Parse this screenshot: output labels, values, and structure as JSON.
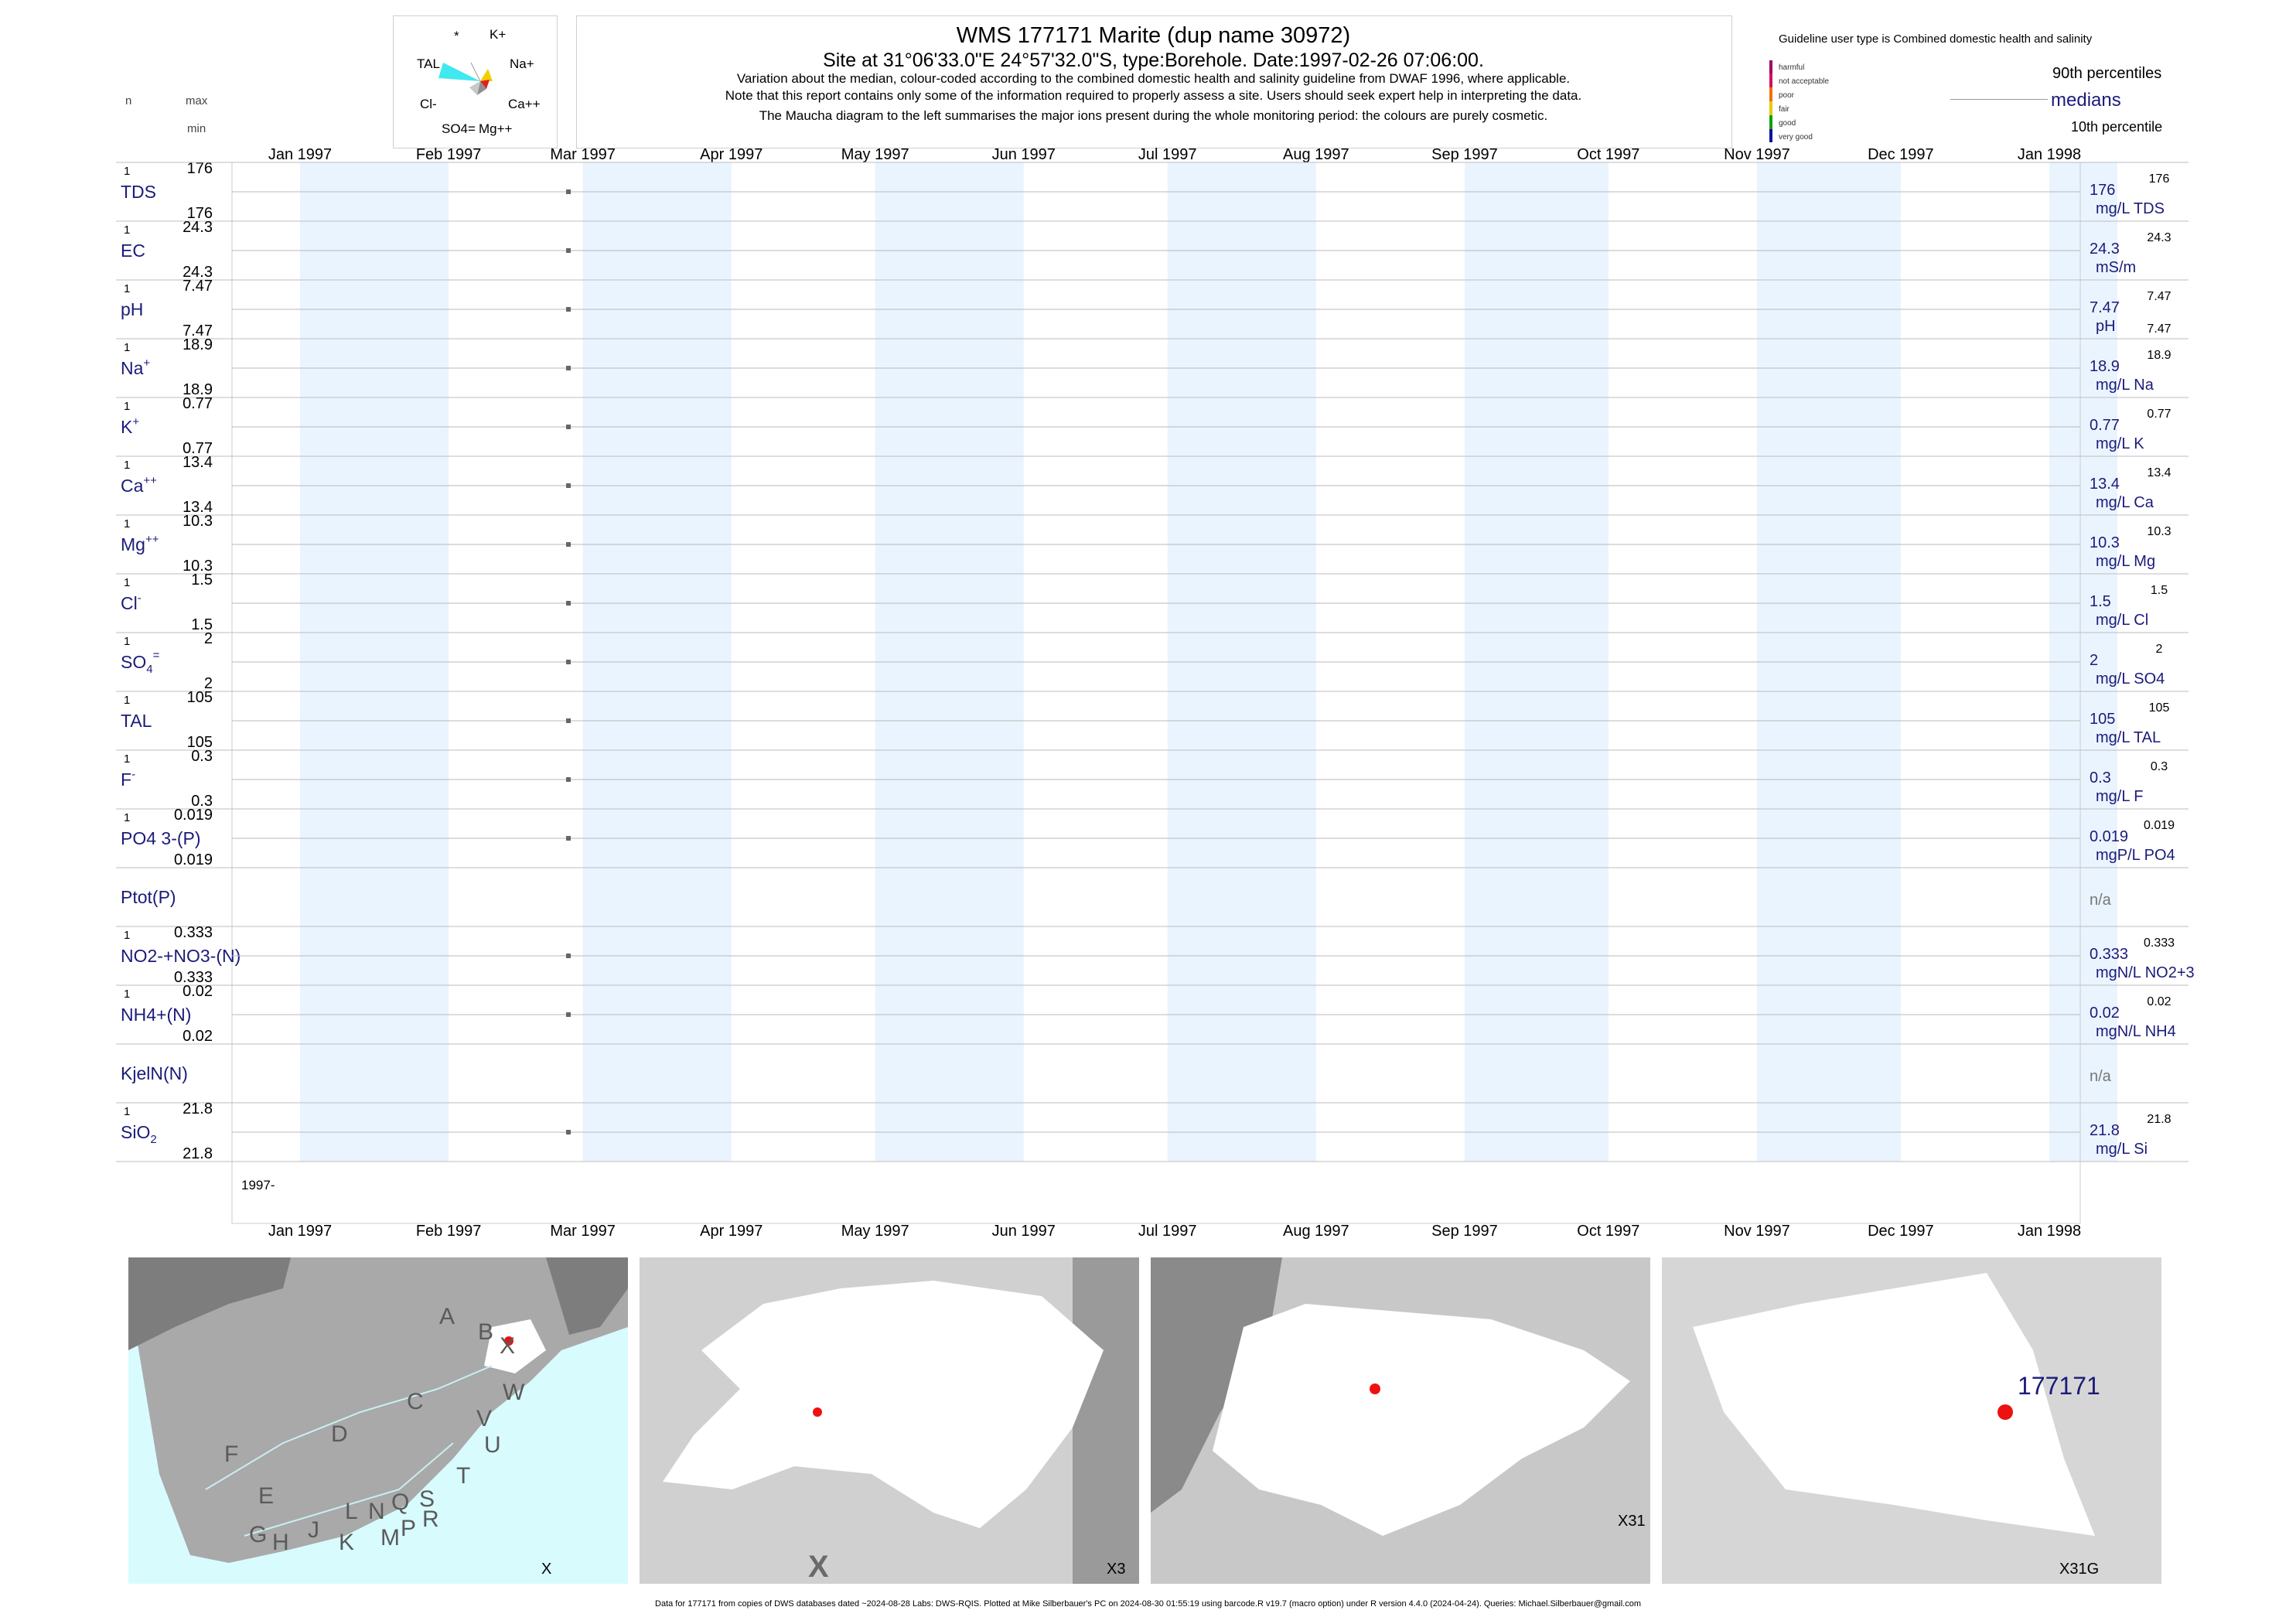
{
  "header": {
    "title": "WMS 177171  Marite (dup name 30972)",
    "subtitle": "Site at 31°06'33.0\"E 24°57'32.0\"S, type:Borehole. Date:1997-02-26 07:06:00.",
    "note1": "Variation about the median,  colour-coded according to the combined domestic health and salinity guideline from DWAF 1996, where applicable.",
    "note2": "Note that this report contains only some of the information required to properly assess a site. Users should seek expert help in interpreting the data.",
    "note3": "The Maucha diagram to the left summarises the major ions present during the whole monitoring period: the colours are purely cosmetic.",
    "n_label": "n",
    "max_label": "max",
    "min_label": "min"
  },
  "maucha": {
    "labels": [
      "*",
      "K+",
      "TAL",
      "Na+",
      "Cl-",
      "Ca++",
      "SO4=",
      "Mg++"
    ],
    "colors": [
      "#40e8f0",
      "#f0d000",
      "#e02020",
      "#909090",
      "#c8c8c8"
    ]
  },
  "legend": {
    "guideline": "Guideline user type is Combined domestic health and salinity",
    "classes": [
      "harmful",
      "not acceptable",
      "poor",
      "fair",
      "good",
      "very good"
    ],
    "class_colors": [
      "#a0006a",
      "#d01060",
      "#f07000",
      "#e8c800",
      "#10a010",
      "#1010a0"
    ],
    "p90": "90th percentiles",
    "medians": "medians",
    "p10": "10th percentile"
  },
  "chart_data": {
    "type": "scatter",
    "x_axis_months": [
      "Jan 1997",
      "Feb 1997",
      "Mar 1997",
      "Apr 1997",
      "May 1997",
      "Jun 1997",
      "Jul 1997",
      "Aug 1997",
      "Sep 1997",
      "Oct 1997",
      "Nov 1997",
      "Dec 1997",
      "Jan 1998"
    ],
    "x_range": [
      "1997-01-01",
      "1998-01-01"
    ],
    "sample_date": "1997-02-26",
    "year_label": "1997-",
    "series": [
      {
        "name": "TDS",
        "n": "1",
        "max": "176",
        "min": "176",
        "value": 176,
        "median": "176",
        "unit": "mg/L TDS",
        "right_top": "176",
        "right_bottom": ""
      },
      {
        "name": "EC",
        "n": "1",
        "max": "24.3",
        "min": "24.3",
        "value": 24.3,
        "median": "24.3",
        "unit": "mS/m",
        "right_top": "24.3",
        "right_bottom": ""
      },
      {
        "name": "pH",
        "n": "1",
        "max": "7.47",
        "min": "7.47",
        "value": 7.47,
        "median": "7.47",
        "unit": "pH",
        "right_top": "7.47",
        "right_bottom": "7.47"
      },
      {
        "name": "Na+",
        "n": "1",
        "max": "18.9",
        "min": "18.9",
        "value": 18.9,
        "median": "18.9",
        "unit": "mg/L Na",
        "right_top": "18.9",
        "right_bottom": ""
      },
      {
        "name": "K+",
        "n": "1",
        "max": "0.77",
        "min": "0.77",
        "value": 0.77,
        "median": "0.77",
        "unit": "mg/L K",
        "right_top": "0.77",
        "right_bottom": ""
      },
      {
        "name": "Ca++",
        "n": "1",
        "max": "13.4",
        "min": "13.4",
        "value": 13.4,
        "median": "13.4",
        "unit": "mg/L Ca",
        "right_top": "13.4",
        "right_bottom": ""
      },
      {
        "name": "Mg++",
        "n": "1",
        "max": "10.3",
        "min": "10.3",
        "value": 10.3,
        "median": "10.3",
        "unit": "mg/L Mg",
        "right_top": "10.3",
        "right_bottom": ""
      },
      {
        "name": "Cl-",
        "n": "1",
        "max": "1.5",
        "min": "1.5",
        "value": 1.5,
        "median": "1.5",
        "unit": "mg/L Cl",
        "right_top": "1.5",
        "right_bottom": ""
      },
      {
        "name": "SO4=",
        "n": "1",
        "max": "2",
        "min": "2",
        "value": 2,
        "median": "2",
        "unit": "mg/L SO4",
        "right_top": "2",
        "right_bottom": ""
      },
      {
        "name": "TAL",
        "n": "1",
        "max": "105",
        "min": "105",
        "value": 105,
        "median": "105",
        "unit": "mg/L TAL",
        "right_top": "105",
        "right_bottom": ""
      },
      {
        "name": "F-",
        "n": "1",
        "max": "0.3",
        "min": "0.3",
        "value": 0.3,
        "median": "0.3",
        "unit": "mg/L F",
        "right_top": "0.3",
        "right_bottom": ""
      },
      {
        "name": "PO4 3-(P)",
        "n": "1",
        "max": "0.019",
        "min": "0.019",
        "value": 0.019,
        "median": "0.019",
        "unit": "mgP/L PO4",
        "right_top": "0.019",
        "right_bottom": ""
      },
      {
        "name": "Ptot(P)",
        "n": "",
        "max": "",
        "min": "",
        "value": null,
        "median": "n/a",
        "unit": "",
        "right_top": "",
        "right_bottom": ""
      },
      {
        "name": "NO2-+NO3-(N)",
        "n": "1",
        "max": "0.333",
        "min": "0.333",
        "value": 0.333,
        "median": "0.333",
        "unit": "mgN/L NO2+3",
        "right_top": "0.333",
        "right_bottom": ""
      },
      {
        "name": "NH4+(N)",
        "n": "1",
        "max": "0.02",
        "min": "0.02",
        "value": 0.02,
        "median": "0.02",
        "unit": "mgN/L NH4",
        "right_top": "0.02",
        "right_bottom": ""
      },
      {
        "name": "KjelN(N)",
        "n": "",
        "max": "",
        "min": "",
        "value": null,
        "median": "n/a",
        "unit": "",
        "right_top": "",
        "right_bottom": ""
      },
      {
        "name": "SiO2",
        "n": "1",
        "max": "21.8",
        "min": "21.8",
        "value": 21.8,
        "median": "21.8",
        "unit": "mg/L Si",
        "right_top": "21.8",
        "right_bottom": ""
      }
    ]
  },
  "maps": {
    "map1": {
      "corner": "X",
      "regions": [
        "A",
        "B",
        "X",
        "C",
        "W",
        "D",
        "V",
        "U",
        "F",
        "T",
        "E",
        "L",
        "N",
        "Q",
        "S",
        "G",
        "H",
        "J",
        "K",
        "M",
        "P",
        "R"
      ]
    },
    "map2": {
      "corner": "X3",
      "big": "X"
    },
    "map3": {
      "corner": "X31"
    },
    "map4": {
      "corner": "X31G",
      "site": "177171"
    },
    "colors": {
      "land": "#a9a9a9",
      "catchment": "#ffffff",
      "sea": "#d8fbfe",
      "dark": "#7d7d7d",
      "site": "#ee1111"
    }
  },
  "footer": {
    "text": "Data for 177171 from copies of DWS databases dated ~2024-08-28 Labs: DWS-RQIS. Plotted at Mike Silberbauer's PC on 2024-08-30 01:55:19 using barcode.R v19.7 (macro option) under R version 4.4.0 (2024-04-24). Queries: Michael.Silberbauer@gmail.com"
  }
}
